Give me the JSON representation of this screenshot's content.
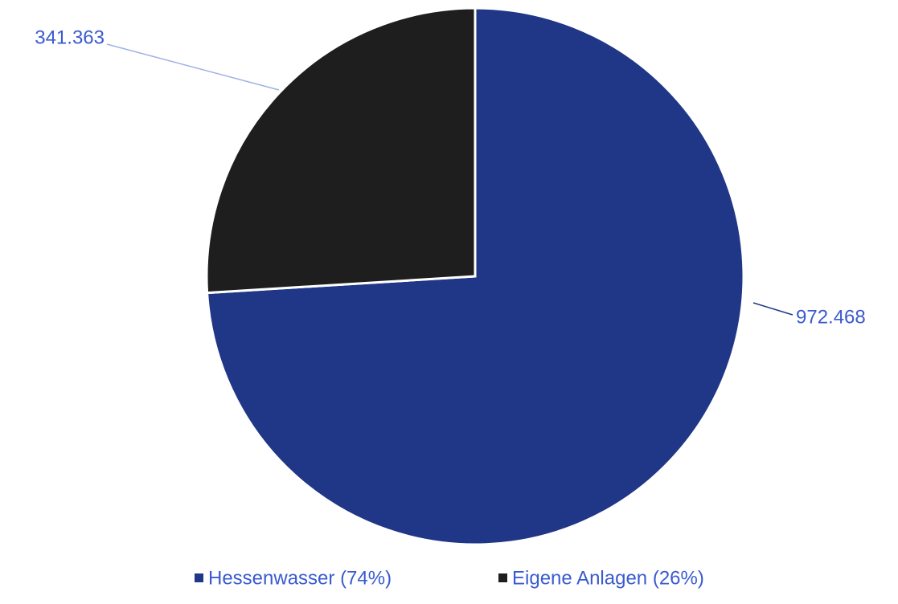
{
  "chart_data": {
    "type": "pie",
    "categories": [
      "Hessenwasser (74%)",
      "Eigene Anlagen (26%)"
    ],
    "values": [
      972468,
      341363
    ],
    "value_labels": [
      "972.468",
      "341.363"
    ],
    "colors": [
      "#203686",
      "#1e1e1e"
    ],
    "legend": "bottom"
  }
}
